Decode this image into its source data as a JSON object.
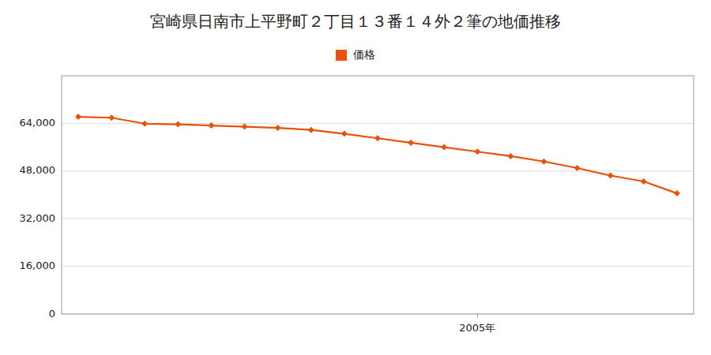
{
  "chart_data": {
    "type": "line",
    "title": "宮崎県日南市上平野町２丁目１３番１４外２筆の地価推移",
    "x": [
      1993,
      1994,
      1995,
      1996,
      1997,
      1998,
      1999,
      2000,
      2001,
      2002,
      2003,
      2004,
      2005,
      2006,
      2007,
      2008,
      2009,
      2010,
      2011
    ],
    "series": [
      {
        "name": "価格",
        "color": "#E8520A",
        "marker": "diamond",
        "values": [
          66200,
          65900,
          63900,
          63700,
          63300,
          62900,
          62500,
          61800,
          60500,
          59000,
          57500,
          56000,
          54500,
          53000,
          51200,
          49000,
          46500,
          44500,
          40500
        ]
      }
    ],
    "xlim": [
      1992.5,
      2011.5
    ],
    "xticks": [
      {
        "value": 2005,
        "label": "2005年"
      }
    ],
    "ylim": [
      0,
      80000
    ],
    "yticks": [
      0,
      {
        "value": 16000,
        "label": "16,000"
      },
      {
        "value": 32000,
        "label": "32,000"
      },
      {
        "value": 48000,
        "label": "48,000"
      },
      {
        "value": 64000,
        "label": "64,000"
      }
    ],
    "grid": true,
    "legend": "top"
  }
}
